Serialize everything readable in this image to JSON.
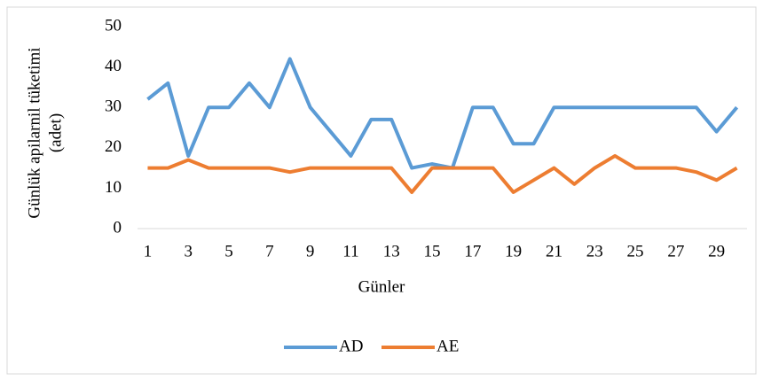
{
  "chart_data": {
    "type": "line",
    "ylabel": [
      "Günlük apilarnil tüketimi",
      "(adet)"
    ],
    "xlabel": "Günler",
    "categories": [
      1,
      null,
      3,
      null,
      5,
      null,
      7,
      null,
      9,
      null,
      11,
      null,
      13,
      null,
      15,
      null,
      17,
      null,
      19,
      null,
      21,
      null,
      23,
      null,
      25,
      null,
      27,
      null,
      29,
      null
    ],
    "series": [
      {
        "name": "AD",
        "color": "#5b9bd5",
        "values": [
          32,
          36,
          18,
          30,
          30,
          36,
          30,
          42,
          30,
          24,
          18,
          27,
          27,
          15,
          16,
          15,
          30,
          30,
          21,
          21,
          30,
          30,
          30,
          30,
          30,
          30,
          30,
          30,
          24,
          30
        ]
      },
      {
        "name": "AE",
        "color": "#ed7d31",
        "values": [
          15,
          15,
          17,
          15,
          15,
          15,
          15,
          14,
          15,
          15,
          15,
          15,
          15,
          9,
          15,
          15,
          15,
          15,
          9,
          12,
          15,
          11,
          15,
          18,
          15,
          15,
          15,
          14,
          12,
          15
        ]
      }
    ],
    "ylim": [
      0,
      50
    ],
    "yticks": [
      0,
      10,
      20,
      30,
      40,
      50
    ],
    "legend": "bottom"
  }
}
